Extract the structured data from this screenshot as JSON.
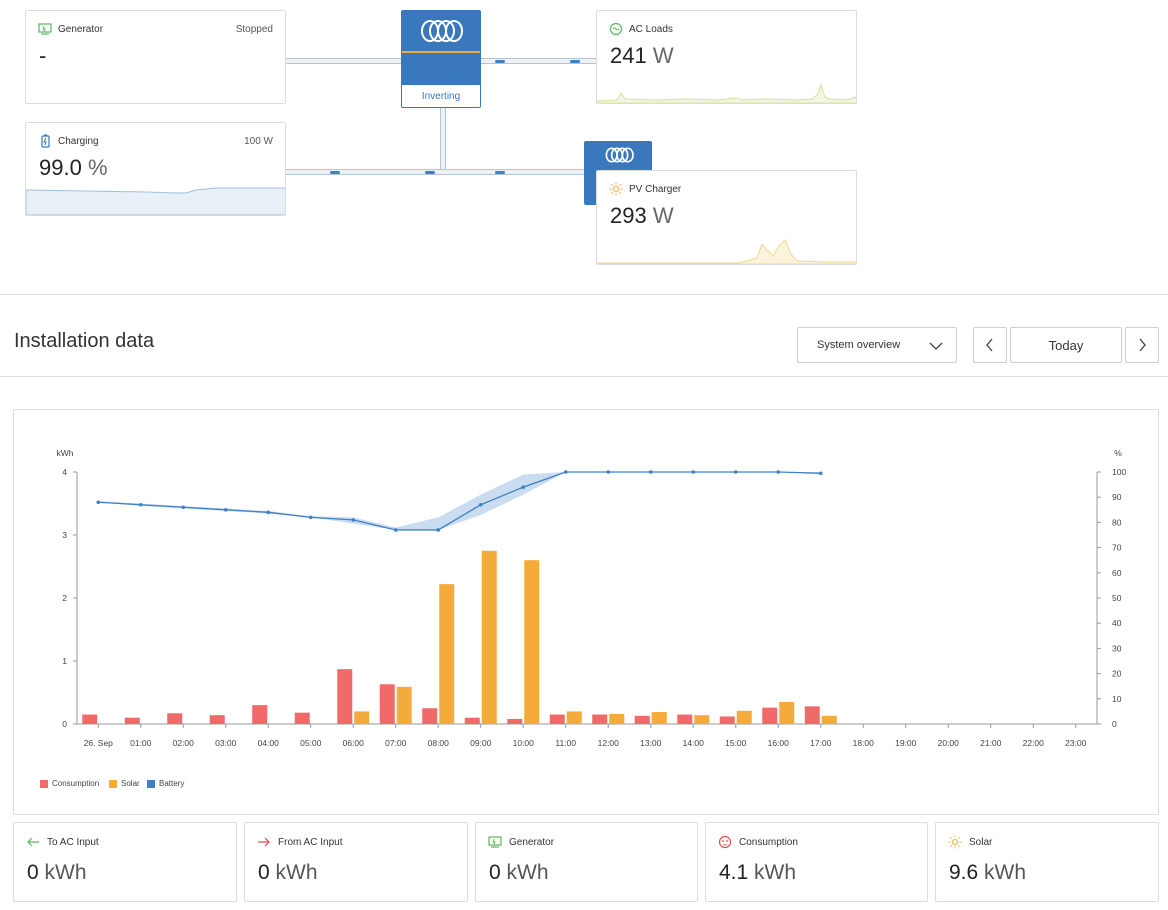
{
  "top": {
    "generator": {
      "title": "Generator",
      "status": "Stopped",
      "value": "-"
    },
    "inverter": {
      "status": "Inverting"
    },
    "ac_loads": {
      "title": "AC Loads",
      "value": "241",
      "unit": "W"
    },
    "battery": {
      "title": "Charging",
      "power": "100 W",
      "value": "99.0",
      "unit": "%"
    },
    "pv_charger": {
      "title": "PV Charger",
      "value": "293",
      "unit": "W"
    }
  },
  "installation": {
    "title": "Installation data",
    "view_select": "System overview",
    "date_label": "Today"
  },
  "chart_data": {
    "type": "bar",
    "categories": [
      "26. Sep",
      "01:00",
      "02:00",
      "03:00",
      "04:00",
      "05:00",
      "06:00",
      "07:00",
      "08:00",
      "09:00",
      "10:00",
      "11:00",
      "12:00",
      "13:00",
      "14:00",
      "15:00",
      "16:00",
      "17:00",
      "18:00",
      "19:00",
      "20:00",
      "21:00",
      "22:00",
      "23:00"
    ],
    "left_axis_unit": "kWh",
    "right_axis_unit": "%",
    "ylim": [
      0,
      4
    ],
    "y2lim": [
      0,
      100
    ],
    "yticks": [
      "0",
      "1",
      "2",
      "3",
      "4"
    ],
    "y2ticks": [
      "0",
      "10",
      "20",
      "30",
      "40",
      "50",
      "60",
      "70",
      "80",
      "90",
      "100"
    ],
    "series": [
      {
        "name": "Consumption",
        "color": "#f06a6a",
        "values": [
          0.15,
          0.1,
          0.17,
          0.14,
          0.3,
          0.18,
          0.87,
          0.63,
          0.25,
          0.1,
          0.08,
          0.15,
          0.15,
          0.13,
          0.15,
          0.12,
          0.26,
          0.28,
          0,
          0,
          0,
          0,
          0,
          0
        ]
      },
      {
        "name": "Solar",
        "color": "#f5ab3b",
        "values": [
          0,
          0,
          0,
          0,
          0,
          0,
          0.2,
          0.59,
          2.22,
          2.75,
          2.6,
          0.2,
          0.16,
          0.19,
          0.14,
          0.21,
          0.35,
          0.13,
          0,
          0,
          0,
          0,
          0,
          0
        ]
      },
      {
        "name": "Battery",
        "color": "#3f80c8",
        "axis": "right",
        "x": [
          0,
          1,
          2,
          3,
          4,
          5,
          6,
          7,
          8,
          9,
          10,
          11,
          12,
          13,
          14,
          15,
          16,
          17
        ],
        "values": [
          88,
          87,
          86,
          85,
          84,
          82,
          81,
          77,
          77,
          87,
          94,
          100,
          100,
          100,
          100,
          100,
          100,
          99.5
        ],
        "min": [
          88,
          86.5,
          85.5,
          84.5,
          83.5,
          82,
          79.5,
          77,
          77,
          83,
          91,
          100,
          100,
          100,
          100,
          100,
          100,
          99
        ],
        "max": [
          88.5,
          87.5,
          86.5,
          85.5,
          84.5,
          82.5,
          82,
          78,
          82,
          91,
          99,
          100,
          100,
          100,
          100,
          100,
          100,
          100
        ]
      }
    ]
  },
  "stats": [
    {
      "title": "To AC Input",
      "value": "0",
      "unit": "kWh",
      "icon": "arrow-left-icon",
      "color": "#5cb85c"
    },
    {
      "title": "From AC Input",
      "value": "0",
      "unit": "kWh",
      "icon": "arrow-right-icon",
      "color": "#e05050"
    },
    {
      "title": "Generator",
      "value": "0",
      "unit": "kWh",
      "icon": "generator-icon",
      "color": "#5cb85c"
    },
    {
      "title": "Consumption",
      "value": "4.1",
      "unit": "kWh",
      "icon": "outlet-icon",
      "color": "#e05050"
    },
    {
      "title": "Solar",
      "value": "9.6",
      "unit": "kWh",
      "icon": "sun-icon",
      "color": "#f5ab3b"
    }
  ]
}
